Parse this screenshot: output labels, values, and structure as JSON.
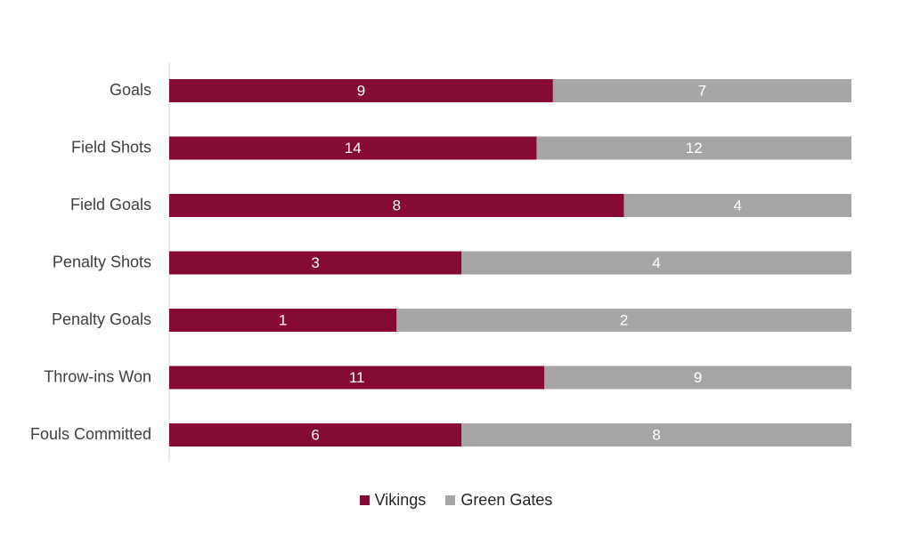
{
  "chart_data": {
    "type": "bar",
    "orientation": "horizontal",
    "stacked": "percent",
    "categories": [
      "Goals",
      "Field Shots",
      "Field Goals",
      "Penalty Shots",
      "Penalty Goals",
      "Throw-ins Won",
      "Fouls Committed"
    ],
    "series": [
      {
        "name": "Vikings",
        "values": [
          9,
          14,
          8,
          3,
          1,
          11,
          6
        ],
        "color": "#850A35"
      },
      {
        "name": "Green Gates",
        "values": [
          7,
          12,
          4,
          4,
          2,
          9,
          8
        ],
        "color": "#A6A6A6"
      }
    ],
    "title": "",
    "xlabel": "",
    "ylabel": "",
    "grid": false,
    "legend_position": "bottom",
    "data_labels": true
  }
}
